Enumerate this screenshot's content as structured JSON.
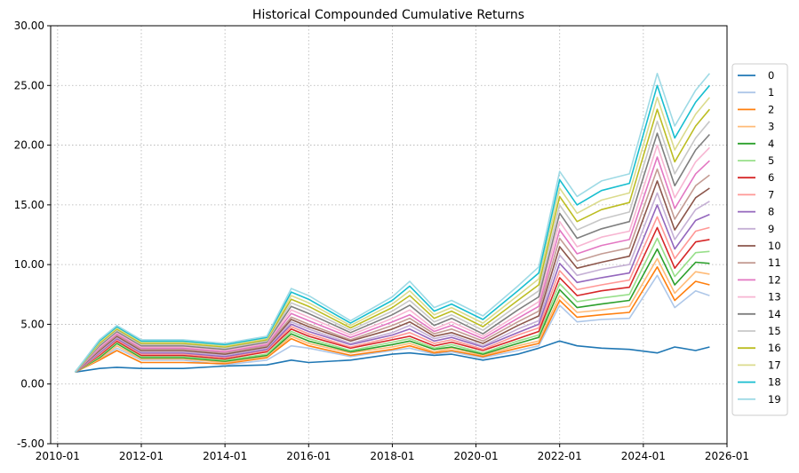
{
  "chart_data": {
    "type": "line",
    "title": "Historical Compounded Cumulative Returns",
    "xlabel": "",
    "ylabel": "",
    "x_range": [
      "2009-11-01",
      "2026-01-01"
    ],
    "ylim": [
      -5,
      30
    ],
    "y_ticks": [
      -5,
      0,
      5,
      10,
      15,
      20,
      25,
      30
    ],
    "y_tick_labels": [
      "-5.00",
      "0.00",
      "5.00",
      "10.00",
      "15.00",
      "20.00",
      "25.00",
      "30.00"
    ],
    "x_ticks": [
      "2010-01",
      "2012-01",
      "2014-01",
      "2016-01",
      "2018-01",
      "2020-01",
      "2022-01",
      "2024-01",
      "2026-01"
    ],
    "grid": true,
    "legend_position": "right",
    "anchor_dates": [
      "2010-06",
      "2011-01",
      "2011-06",
      "2012-01",
      "2013-01",
      "2014-01",
      "2015-01",
      "2015-08",
      "2016-01",
      "2017-01",
      "2018-01",
      "2018-06",
      "2019-01",
      "2019-06",
      "2020-03",
      "2021-01",
      "2021-07",
      "2022-01",
      "2022-06",
      "2023-01",
      "2023-09",
      "2024-05",
      "2024-10",
      "2025-04",
      "2025-08"
    ],
    "series": [
      {
        "name": "0",
        "color": "#1f77b4",
        "values": [
          1.0,
          1.3,
          1.4,
          1.3,
          1.3,
          1.5,
          1.6,
          2.0,
          1.8,
          2.0,
          2.5,
          2.6,
          2.4,
          2.5,
          2.0,
          2.5,
          3.0,
          3.6,
          3.2,
          3.0,
          2.9,
          2.6,
          3.1,
          2.8,
          3.1
        ]
      },
      {
        "name": "1",
        "color": "#aec7e8",
        "values": [
          1.0,
          2.0,
          3.0,
          2.0,
          2.0,
          1.6,
          2.0,
          3.2,
          3.0,
          2.3,
          2.8,
          3.0,
          2.5,
          2.7,
          2.2,
          2.8,
          3.2,
          6.6,
          5.2,
          5.4,
          5.5,
          9.1,
          6.4,
          7.8,
          7.4
        ]
      },
      {
        "name": "2",
        "color": "#ff7f0e",
        "values": [
          1.0,
          2.0,
          2.8,
          1.8,
          1.8,
          1.7,
          2.2,
          3.8,
          3.2,
          2.4,
          2.9,
          3.2,
          2.6,
          2.8,
          2.3,
          3.0,
          3.4,
          7.0,
          5.6,
          5.8,
          6.0,
          9.8,
          7.0,
          8.6,
          8.3
        ]
      },
      {
        "name": "3",
        "color": "#ffbb78",
        "values": [
          1.0,
          2.1,
          3.2,
          2.1,
          2.1,
          1.8,
          2.3,
          4.0,
          3.4,
          2.6,
          3.1,
          3.4,
          2.7,
          3.0,
          2.4,
          3.2,
          3.6,
          7.4,
          6.0,
          6.2,
          6.5,
          10.5,
          7.6,
          9.4,
          9.2
        ]
      },
      {
        "name": "4",
        "color": "#2ca02c",
        "values": [
          1.0,
          2.2,
          3.4,
          2.2,
          2.2,
          1.9,
          2.4,
          4.2,
          3.6,
          2.7,
          3.3,
          3.6,
          2.9,
          3.1,
          2.5,
          3.4,
          3.9,
          7.9,
          6.4,
          6.7,
          7.0,
          11.3,
          8.3,
          10.2,
          10.1
        ]
      },
      {
        "name": "5",
        "color": "#98df8a",
        "values": [
          1.0,
          2.3,
          3.5,
          2.3,
          2.3,
          2.0,
          2.5,
          4.4,
          3.8,
          2.8,
          3.5,
          3.8,
          3.0,
          3.3,
          2.6,
          3.6,
          4.1,
          8.4,
          6.9,
          7.2,
          7.5,
          12.2,
          9.0,
          11.0,
          11.1
        ]
      },
      {
        "name": "6",
        "color": "#d62728",
        "values": [
          1.0,
          2.4,
          3.6,
          2.4,
          2.4,
          2.1,
          2.7,
          4.6,
          4.0,
          3.0,
          3.7,
          4.0,
          3.2,
          3.5,
          2.8,
          3.8,
          4.4,
          8.9,
          7.4,
          7.8,
          8.1,
          13.1,
          9.7,
          11.9,
          12.1
        ]
      },
      {
        "name": "7",
        "color": "#ff9896",
        "values": [
          1.0,
          2.5,
          3.7,
          2.5,
          2.5,
          2.2,
          2.8,
          4.8,
          4.2,
          3.1,
          3.9,
          4.3,
          3.4,
          3.7,
          2.9,
          4.1,
          4.7,
          9.5,
          7.9,
          8.3,
          8.7,
          14.0,
          10.5,
          12.8,
          13.1
        ]
      },
      {
        "name": "8",
        "color": "#9467bd",
        "values": [
          1.0,
          2.6,
          3.8,
          2.6,
          2.6,
          2.3,
          2.9,
          5.0,
          4.4,
          3.3,
          4.1,
          4.6,
          3.6,
          3.9,
          3.1,
          4.3,
          5.0,
          10.1,
          8.5,
          8.9,
          9.3,
          15.0,
          11.3,
          13.7,
          14.2
        ]
      },
      {
        "name": "9",
        "color": "#c5b0d5",
        "values": [
          1.0,
          2.7,
          3.9,
          2.7,
          2.7,
          2.4,
          3.0,
          5.2,
          4.6,
          3.4,
          4.3,
          4.9,
          3.8,
          4.1,
          3.2,
          4.6,
          5.3,
          10.8,
          9.1,
          9.6,
          10.0,
          16.0,
          12.1,
          14.6,
          15.3
        ]
      },
      {
        "name": "10",
        "color": "#8c564b",
        "values": [
          1.0,
          2.8,
          4.0,
          2.8,
          2.8,
          2.5,
          3.1,
          5.4,
          4.8,
          3.6,
          4.6,
          5.2,
          4.0,
          4.3,
          3.4,
          4.9,
          5.7,
          11.5,
          9.7,
          10.2,
          10.7,
          17.0,
          12.9,
          15.6,
          16.4
        ]
      },
      {
        "name": "11",
        "color": "#c49c94",
        "values": [
          1.0,
          2.9,
          4.1,
          2.9,
          2.9,
          2.6,
          3.2,
          5.6,
          5.0,
          3.7,
          4.9,
          5.5,
          4.2,
          4.6,
          3.6,
          5.2,
          6.1,
          12.2,
          10.3,
          10.9,
          11.4,
          18.0,
          13.8,
          16.6,
          17.5
        ]
      },
      {
        "name": "12",
        "color": "#e377c2",
        "values": [
          1.0,
          3.0,
          4.2,
          3.0,
          3.0,
          2.7,
          3.3,
          5.9,
          5.3,
          3.9,
          5.2,
          5.8,
          4.4,
          4.9,
          3.8,
          5.5,
          6.5,
          12.9,
          10.9,
          11.6,
          12.1,
          19.0,
          14.7,
          17.6,
          18.7
        ]
      },
      {
        "name": "13",
        "color": "#f7b6d2",
        "values": [
          1.0,
          3.1,
          4.3,
          3.1,
          3.1,
          2.8,
          3.4,
          6.2,
          5.6,
          4.1,
          5.5,
          6.2,
          4.6,
          5.2,
          4.0,
          5.8,
          6.9,
          13.6,
          11.5,
          12.3,
          12.8,
          20.0,
          15.6,
          18.6,
          19.8
        ]
      },
      {
        "name": "14",
        "color": "#7f7f7f",
        "values": [
          1.0,
          3.2,
          4.4,
          3.2,
          3.2,
          2.9,
          3.5,
          6.5,
          5.9,
          4.3,
          5.8,
          6.6,
          4.9,
          5.5,
          4.2,
          6.2,
          7.3,
          14.3,
          12.2,
          13.0,
          13.6,
          21.0,
          16.6,
          19.6,
          20.9
        ]
      },
      {
        "name": "15",
        "color": "#c7c7c7",
        "values": [
          1.0,
          3.3,
          4.5,
          3.3,
          3.3,
          3.0,
          3.6,
          6.8,
          6.2,
          4.5,
          6.1,
          7.0,
          5.2,
          5.8,
          4.5,
          6.6,
          7.8,
          15.0,
          12.9,
          13.8,
          14.4,
          22.0,
          17.6,
          20.6,
          22.0
        ]
      },
      {
        "name": "16",
        "color": "#bcbd22",
        "values": [
          1.0,
          3.4,
          4.6,
          3.4,
          3.4,
          3.1,
          3.7,
          7.1,
          6.5,
          4.7,
          6.4,
          7.4,
          5.5,
          6.1,
          4.8,
          7.0,
          8.3,
          15.7,
          13.6,
          14.6,
          15.2,
          23.0,
          18.6,
          21.6,
          23.0
        ]
      },
      {
        "name": "17",
        "color": "#dbdb8d",
        "values": [
          1.0,
          3.5,
          4.7,
          3.5,
          3.5,
          3.2,
          3.8,
          7.4,
          6.8,
          4.9,
          6.7,
          7.8,
          5.8,
          6.4,
          5.1,
          7.4,
          8.8,
          16.4,
          14.3,
          15.4,
          16.0,
          24.0,
          19.6,
          22.6,
          24.0
        ]
      },
      {
        "name": "18",
        "color": "#17becf",
        "values": [
          1.0,
          3.6,
          4.8,
          3.6,
          3.6,
          3.3,
          3.9,
          7.7,
          7.1,
          5.1,
          7.0,
          8.2,
          6.1,
          6.7,
          5.4,
          7.8,
          9.3,
          17.1,
          15.0,
          16.2,
          16.8,
          25.0,
          20.6,
          23.6,
          25.0
        ]
      },
      {
        "name": "19",
        "color": "#9edae5",
        "values": [
          1.0,
          3.7,
          4.9,
          3.7,
          3.7,
          3.4,
          4.0,
          8.0,
          7.4,
          5.3,
          7.3,
          8.6,
          6.4,
          7.0,
          5.7,
          8.2,
          9.8,
          17.8,
          15.7,
          17.0,
          17.6,
          26.0,
          21.6,
          24.6,
          26.0
        ]
      }
    ]
  }
}
